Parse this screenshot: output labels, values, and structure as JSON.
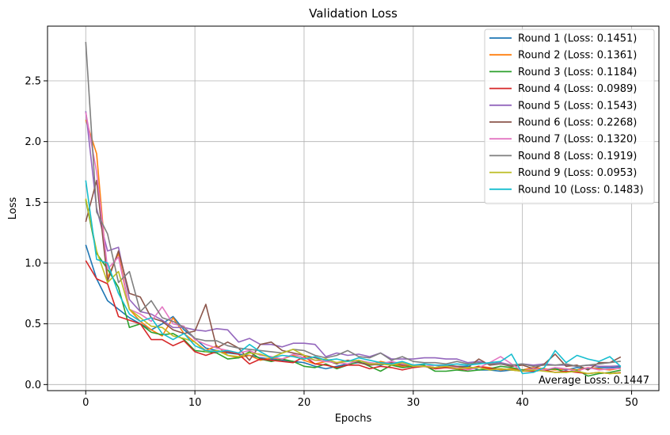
{
  "chart_data": {
    "type": "line",
    "title": "Validation Loss",
    "xlabel": "Epochs",
    "ylabel": "Loss",
    "xlim": [
      -3.5,
      52.5
    ],
    "ylim": [
      -0.05,
      2.95
    ],
    "xticks": [
      0,
      10,
      20,
      30,
      40,
      50
    ],
    "yticks": [
      0.0,
      0.5,
      1.0,
      1.5,
      2.0,
      2.5
    ],
    "xtick_labels": [
      "0",
      "10",
      "20",
      "30",
      "40",
      "50"
    ],
    "ytick_labels": [
      "0.0",
      "0.5",
      "1.0",
      "1.5",
      "2.0",
      "2.5"
    ],
    "grid": true,
    "legend_position": "top-right",
    "annotation": "Average Loss: 0.1447",
    "series": [
      {
        "name": "Round 1 (Loss: 0.1451)",
        "color": "#1f77b4",
        "values": [
          1.15,
          0.87,
          0.69,
          0.62,
          0.55,
          0.5,
          0.45,
          0.5,
          0.56,
          0.45,
          0.38,
          0.3,
          0.28,
          0.26,
          0.25,
          0.24,
          0.22,
          0.21,
          0.2,
          0.19,
          0.18,
          0.15,
          0.13,
          0.15,
          0.17,
          0.18,
          0.17,
          0.16,
          0.18,
          0.16,
          0.15,
          0.15,
          0.14,
          0.14,
          0.15,
          0.15,
          0.12,
          0.12,
          0.11,
          0.12,
          0.12,
          0.13,
          0.12,
          0.13,
          0.12,
          0.14,
          0.13,
          0.14,
          0.14,
          0.145
        ]
      },
      {
        "name": "Round 2 (Loss: 0.1361)",
        "color": "#ff7f0e",
        "values": [
          2.18,
          1.9,
          0.88,
          1.08,
          0.62,
          0.52,
          0.45,
          0.4,
          0.55,
          0.42,
          0.35,
          0.28,
          0.32,
          0.24,
          0.22,
          0.24,
          0.2,
          0.22,
          0.21,
          0.24,
          0.2,
          0.17,
          0.19,
          0.18,
          0.2,
          0.18,
          0.16,
          0.19,
          0.17,
          0.15,
          0.16,
          0.15,
          0.14,
          0.15,
          0.14,
          0.13,
          0.15,
          0.14,
          0.12,
          0.13,
          0.12,
          0.14,
          0.13,
          0.12,
          0.13,
          0.12,
          0.14,
          0.13,
          0.12,
          0.136
        ]
      },
      {
        "name": "Round 3 (Loss: 0.1184)",
        "color": "#2ca02c",
        "values": [
          1.52,
          1.08,
          0.95,
          0.8,
          0.47,
          0.5,
          0.43,
          0.41,
          0.42,
          0.37,
          0.28,
          0.27,
          0.26,
          0.21,
          0.22,
          0.27,
          0.21,
          0.19,
          0.21,
          0.19,
          0.15,
          0.14,
          0.17,
          0.13,
          0.16,
          0.19,
          0.15,
          0.11,
          0.16,
          0.14,
          0.15,
          0.16,
          0.11,
          0.11,
          0.12,
          0.11,
          0.12,
          0.13,
          0.15,
          0.14,
          0.12,
          0.11,
          0.12,
          0.13,
          0.1,
          0.12,
          0.07,
          0.09,
          0.1,
          0.118
        ]
      },
      {
        "name": "Round 4 (Loss: 0.0989)",
        "color": "#d62728",
        "values": [
          1.02,
          0.87,
          0.83,
          0.56,
          0.53,
          0.5,
          0.37,
          0.37,
          0.32,
          0.36,
          0.27,
          0.24,
          0.27,
          0.27,
          0.25,
          0.17,
          0.21,
          0.2,
          0.19,
          0.18,
          0.23,
          0.17,
          0.16,
          0.14,
          0.16,
          0.16,
          0.13,
          0.15,
          0.14,
          0.12,
          0.14,
          0.15,
          0.13,
          0.14,
          0.13,
          0.12,
          0.15,
          0.13,
          0.13,
          0.12,
          0.11,
          0.11,
          0.12,
          0.1,
          0.11,
          0.1,
          0.09,
          0.1,
          0.09,
          0.099
        ]
      },
      {
        "name": "Round 5 (Loss: 0.1543)",
        "color": "#9467bd",
        "values": [
          2.25,
          1.45,
          1.1,
          1.13,
          0.7,
          0.6,
          0.58,
          0.53,
          0.47,
          0.47,
          0.45,
          0.44,
          0.46,
          0.45,
          0.35,
          0.38,
          0.33,
          0.33,
          0.31,
          0.34,
          0.34,
          0.33,
          0.23,
          0.26,
          0.24,
          0.25,
          0.23,
          0.26,
          0.21,
          0.21,
          0.21,
          0.22,
          0.22,
          0.21,
          0.21,
          0.18,
          0.19,
          0.17,
          0.18,
          0.16,
          0.17,
          0.16,
          0.17,
          0.16,
          0.16,
          0.15,
          0.16,
          0.15,
          0.15,
          0.154
        ]
      },
      {
        "name": "Round 6 (Loss: 0.2268)",
        "color": "#8c564b",
        "values": [
          1.34,
          1.68,
          0.85,
          1.1,
          0.75,
          0.72,
          0.55,
          0.52,
          0.45,
          0.42,
          0.44,
          0.66,
          0.3,
          0.35,
          0.3,
          0.2,
          0.33,
          0.35,
          0.28,
          0.26,
          0.24,
          0.22,
          0.2,
          0.17,
          0.2,
          0.18,
          0.16,
          0.17,
          0.18,
          0.16,
          0.16,
          0.15,
          0.14,
          0.16,
          0.15,
          0.14,
          0.21,
          0.16,
          0.17,
          0.15,
          0.16,
          0.13,
          0.17,
          0.25,
          0.15,
          0.16,
          0.12,
          0.18,
          0.18,
          0.227
        ]
      },
      {
        "name": "Round 7 (Loss: 0.1320)",
        "color": "#e377c2",
        "values": [
          2.24,
          1.75,
          0.95,
          1.05,
          0.62,
          0.58,
          0.52,
          0.64,
          0.5,
          0.48,
          0.37,
          0.33,
          0.3,
          0.28,
          0.26,
          0.28,
          0.24,
          0.23,
          0.21,
          0.25,
          0.22,
          0.2,
          0.19,
          0.18,
          0.17,
          0.2,
          0.18,
          0.17,
          0.19,
          0.17,
          0.16,
          0.15,
          0.16,
          0.15,
          0.14,
          0.12,
          0.14,
          0.18,
          0.23,
          0.17,
          0.11,
          0.13,
          0.12,
          0.14,
          0.13,
          0.11,
          0.14,
          0.12,
          0.13,
          0.132
        ]
      },
      {
        "name": "Round 8 (Loss: 0.1919)",
        "color": "#7f7f7f",
        "values": [
          2.82,
          1.42,
          1.24,
          0.84,
          0.93,
          0.6,
          0.69,
          0.55,
          0.52,
          0.47,
          0.38,
          0.36,
          0.36,
          0.32,
          0.3,
          0.29,
          0.28,
          0.27,
          0.26,
          0.29,
          0.28,
          0.24,
          0.22,
          0.24,
          0.28,
          0.23,
          0.22,
          0.26,
          0.2,
          0.23,
          0.19,
          0.18,
          0.18,
          0.17,
          0.19,
          0.17,
          0.18,
          0.17,
          0.17,
          0.16,
          0.17,
          0.15,
          0.16,
          0.16,
          0.17,
          0.15,
          0.16,
          0.17,
          0.18,
          0.192
        ]
      },
      {
        "name": "Round 9 (Loss: 0.0953)",
        "color": "#bcbd22",
        "values": [
          1.53,
          1.1,
          0.84,
          0.93,
          0.62,
          0.55,
          0.48,
          0.47,
          0.4,
          0.38,
          0.35,
          0.27,
          0.28,
          0.24,
          0.23,
          0.26,
          0.25,
          0.22,
          0.26,
          0.29,
          0.24,
          0.2,
          0.21,
          0.18,
          0.19,
          0.2,
          0.17,
          0.17,
          0.16,
          0.18,
          0.15,
          0.15,
          0.14,
          0.15,
          0.13,
          0.14,
          0.14,
          0.12,
          0.13,
          0.12,
          0.11,
          0.12,
          0.11,
          0.1,
          0.1,
          0.11,
          0.09,
          0.1,
          0.09,
          0.095
        ]
      },
      {
        "name": "Round 10 (Loss: 0.1483)",
        "color": "#17becf",
        "values": [
          1.68,
          1.03,
          1.0,
          0.75,
          0.58,
          0.52,
          0.55,
          0.42,
          0.37,
          0.42,
          0.32,
          0.28,
          0.27,
          0.28,
          0.26,
          0.33,
          0.27,
          0.22,
          0.24,
          0.23,
          0.21,
          0.23,
          0.2,
          0.21,
          0.19,
          0.22,
          0.2,
          0.18,
          0.17,
          0.19,
          0.16,
          0.17,
          0.16,
          0.16,
          0.17,
          0.16,
          0.17,
          0.18,
          0.19,
          0.25,
          0.09,
          0.1,
          0.14,
          0.28,
          0.18,
          0.24,
          0.21,
          0.19,
          0.23,
          0.148
        ]
      }
    ]
  }
}
